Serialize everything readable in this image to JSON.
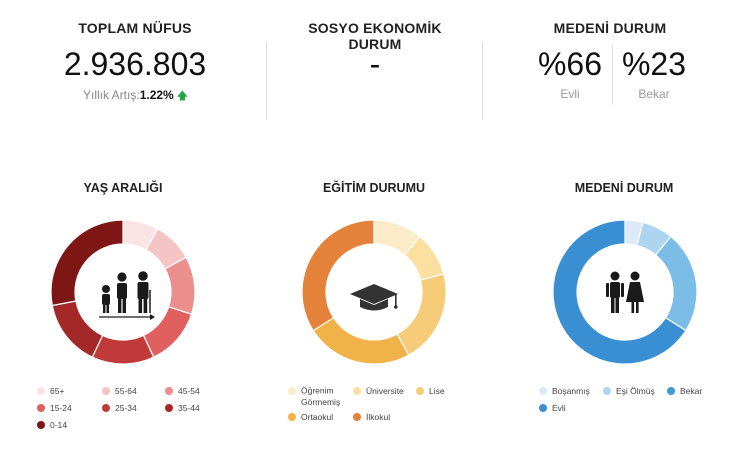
{
  "stats": {
    "population": {
      "title": "TOPLAM NÜFUS",
      "value": "2.936.803",
      "growth_label": "Yıllık Artış:",
      "growth_value": "1.22%"
    },
    "socio": {
      "title": "SOSYO EKONOMİK DURUM",
      "value": "-"
    },
    "marital": {
      "title": "MEDENİ DURUM",
      "married_value": "%66",
      "married_label": "Evli",
      "single_value": "%23",
      "single_label": "Bekar"
    }
  },
  "charts": {
    "age": {
      "title": "YAŞ ARALIĞI"
    },
    "education": {
      "title": "EĞİTİM DURUMU"
    },
    "marital": {
      "title": "MEDENİ DURUM"
    }
  },
  "legends": {
    "age": [
      {
        "label": "65+",
        "color": "#fbe3e3"
      },
      {
        "label": "55-64",
        "color": "#f5c4c4"
      },
      {
        "label": "45-54",
        "color": "#eb8e8e"
      },
      {
        "label": "15-24",
        "color": "#e06060"
      },
      {
        "label": "25-34",
        "color": "#c03a3a"
      },
      {
        "label": "35-44",
        "color": "#a52828"
      },
      {
        "label": "0-14",
        "color": "#7e1616"
      }
    ],
    "education": [
      {
        "label": "Öğrenim",
        "label2": "Görmemiş",
        "color": "#fcebc8"
      },
      {
        "label": "Üniversite",
        "color": "#fbe0a0"
      },
      {
        "label": "Lise",
        "color": "#f6cc78"
      },
      {
        "label": "Ortaokul",
        "color": "#f1b24a"
      },
      {
        "label": "İlkokul",
        "color": "#e5823a"
      }
    ],
    "marital": [
      {
        "label": "Boşanmış",
        "color": "#dbeaf6"
      },
      {
        "label": "Eşi Ölmüş",
        "color": "#add5ef"
      },
      {
        "label": "Bekar",
        "color": "#3f9bd8"
      },
      {
        "label": "Evli",
        "color": "#3a8fd2"
      }
    ]
  },
  "chart_data": [
    {
      "type": "pie",
      "title": "YAŞ ARALIĞI",
      "categories": [
        "65+",
        "55-64",
        "45-54",
        "35-44",
        "25-34",
        "15-24",
        "0-14"
      ],
      "values": [
        8,
        9,
        13,
        13,
        14,
        15,
        28
      ],
      "colors": [
        "#fbe3e3",
        "#f5c4c4",
        "#eb8e8e",
        "#e06060",
        "#c03a3a",
        "#a52828",
        "#7e1616"
      ]
    },
    {
      "type": "pie",
      "title": "EĞİTİM DURUMU",
      "categories": [
        "Öğrenim Görmemiş",
        "Üniversite",
        "Lise",
        "Ortaokul",
        "İlkokul"
      ],
      "values": [
        11,
        10,
        21,
        24,
        34
      ],
      "colors": [
        "#fcebc8",
        "#fbe0a0",
        "#f6cc78",
        "#f1b24a",
        "#e5823a"
      ]
    },
    {
      "type": "pie",
      "title": "MEDENİ DURUM",
      "categories": [
        "Boşanmış",
        "Eşi Ölmüş",
        "Bekar",
        "Evli"
      ],
      "values": [
        4,
        7,
        23,
        66
      ],
      "colors": [
        "#dbeaf6",
        "#add5ef",
        "#7bbde6",
        "#3a8fd2"
      ]
    }
  ]
}
